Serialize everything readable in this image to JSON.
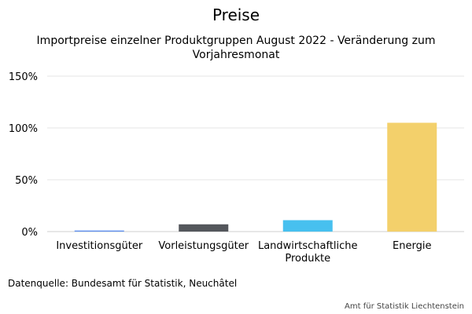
{
  "title": "Preise",
  "subtitle": "Importpreise einzelner Produktgruppen August 2022 - Veränderung zum Vorjahresmonat",
  "source": "Datenquelle: Bundesamt für Statistik, Neuchâtel",
  "credit": "Amt für Statistik Liechtenstein",
  "chart_data": {
    "type": "bar",
    "categories": [
      "Investitionsgüter",
      "Vorleistungsgüter",
      "Landwirtschaftliche Produkte",
      "Energie"
    ],
    "category_lines": [
      [
        "Investitionsgüter"
      ],
      [
        "Vorleistungsgüter"
      ],
      [
        "Landwirtschaftliche",
        "Produkte"
      ],
      [
        "Energie"
      ]
    ],
    "values": [
      1,
      7,
      11,
      105
    ],
    "unit": "%",
    "ylim": [
      0,
      150
    ],
    "yticks": [
      0,
      50,
      100,
      150
    ],
    "ytick_labels": [
      "0%",
      "50%",
      "100%",
      "150%"
    ],
    "grid": true,
    "colors": [
      "#5b8def",
      "#54575c",
      "#47c0ef",
      "#f3d06b"
    ]
  }
}
